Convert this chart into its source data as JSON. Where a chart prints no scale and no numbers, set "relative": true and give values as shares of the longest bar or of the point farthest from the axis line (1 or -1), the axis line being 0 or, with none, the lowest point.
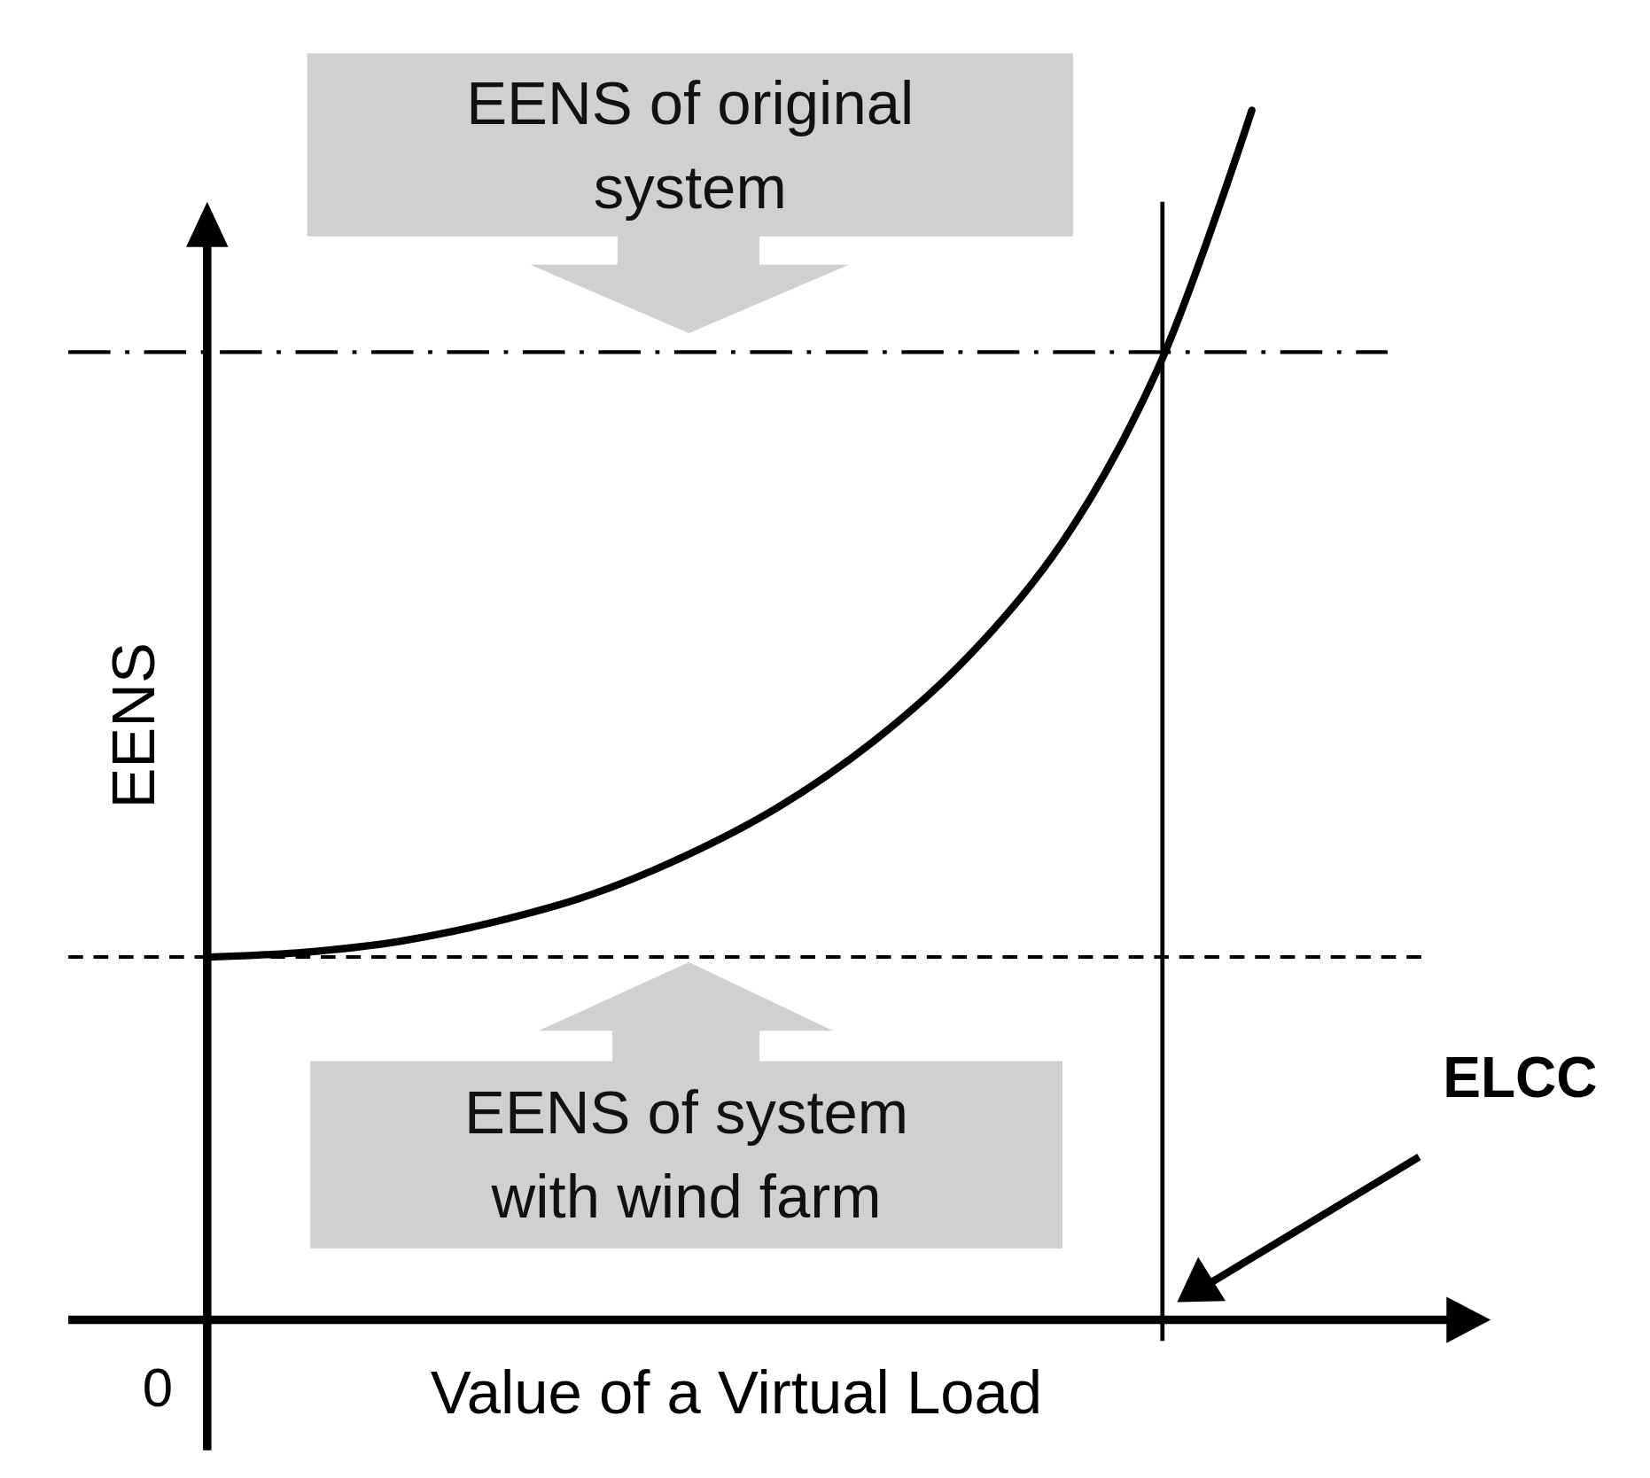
{
  "chart_data": {
    "type": "line",
    "relative": true,
    "xlabel": "Value of a Virtual Load",
    "ylabel": "EENS",
    "categories": [
      null,
      null,
      null,
      null,
      null,
      null,
      null,
      null,
      null,
      null,
      null,
      null
    ],
    "series": [
      {
        "color": "#000000",
        "values": [
          0.3,
          0.304,
          0.313,
          0.329,
          0.351,
          0.383,
          0.424,
          0.478,
          0.548,
          0.643,
          0.785,
          1.0
        ]
      }
    ],
    "ref_lines": [
      {
        "axis": "y",
        "value": 0.8,
        "line_style": "dashdot",
        "color": "#000000"
      },
      {
        "axis": "y",
        "value": 0.3,
        "line_style": "dashed",
        "color": "#000000"
      }
    ],
    "annotations": [
      "EENS of original system",
      "EENS of system with wind farm",
      "0",
      "ELCC"
    ],
    "marker": "none",
    "line_style": "solid"
  }
}
